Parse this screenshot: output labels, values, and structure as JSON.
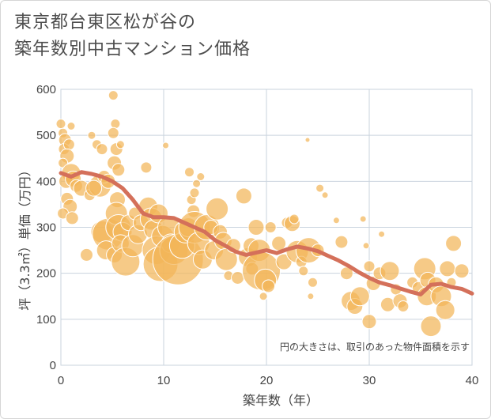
{
  "chart_data": {
    "type": "scatter",
    "title_line1": "東京都台東区松が谷の",
    "title_line2": "築年数別中古マンション価格",
    "xlabel": "築年数（年）",
    "ylabel": "坪（3.3㎡）単価（万円）",
    "note": "円の大きさは、取引のあった物件面積を示す",
    "xlim": [
      0,
      40
    ],
    "ylim": [
      0,
      600
    ],
    "xticks": [
      0,
      10,
      20,
      30,
      40
    ],
    "yticks": [
      0,
      100,
      200,
      300,
      400,
      500,
      600
    ],
    "grid": true,
    "bubble_color": "#f2b659",
    "line_color": "#d4705a",
    "points": [
      [
        0.0,
        525,
        6
      ],
      [
        0.2,
        505,
        6
      ],
      [
        0.4,
        490,
        8
      ],
      [
        0.3,
        470,
        7
      ],
      [
        0.8,
        480,
        7
      ],
      [
        0.6,
        455,
        9
      ],
      [
        1.0,
        520,
        5
      ],
      [
        0.2,
        440,
        6
      ],
      [
        1.0,
        418,
        12
      ],
      [
        0.5,
        400,
        9
      ],
      [
        1.2,
        405,
        10
      ],
      [
        1.5,
        390,
        8
      ],
      [
        2.0,
        385,
        10
      ],
      [
        0.6,
        362,
        8
      ],
      [
        0.9,
        345,
        9
      ],
      [
        0.2,
        330,
        7
      ],
      [
        1.1,
        320,
        8
      ],
      [
        2.8,
        370,
        7
      ],
      [
        3.0,
        500,
        5
      ],
      [
        3.5,
        480,
        6
      ],
      [
        4.0,
        470,
        7
      ],
      [
        3.8,
        390,
        14
      ],
      [
        4.2,
        410,
        8
      ],
      [
        4.6,
        400,
        9
      ],
      [
        3.2,
        385,
        10
      ],
      [
        2.5,
        240,
        8
      ],
      [
        4.0,
        290,
        14
      ],
      [
        4.6,
        285,
        20
      ],
      [
        4.4,
        250,
        12
      ],
      [
        5.2,
        240,
        10
      ],
      [
        5.1,
        587,
        6
      ],
      [
        5.3,
        525,
        6
      ],
      [
        5.1,
        505,
        7
      ],
      [
        5.4,
        470,
        8
      ],
      [
        5.2,
        440,
        9
      ],
      [
        5.6,
        425,
        8
      ],
      [
        5.8,
        480,
        5
      ],
      [
        5.5,
        360,
        10
      ],
      [
        5.4,
        330,
        14
      ],
      [
        5.6,
        300,
        16
      ],
      [
        6.0,
        290,
        12
      ],
      [
        5.8,
        265,
        11
      ],
      [
        6.3,
        225,
        18
      ],
      [
        6.6,
        310,
        10
      ],
      [
        7.0,
        260,
        14
      ],
      [
        7.5,
        285,
        12
      ],
      [
        7.2,
        330,
        8
      ],
      [
        7.8,
        310,
        10
      ],
      [
        8.3,
        430,
        7
      ],
      [
        8.5,
        345,
        12
      ],
      [
        8.8,
        318,
        14
      ],
      [
        9.0,
        295,
        12
      ],
      [
        9.3,
        250,
        18
      ],
      [
        9.7,
        220,
        22
      ],
      [
        9.5,
        330,
        12
      ],
      [
        9.9,
        280,
        14
      ],
      [
        10.2,
        478,
        4
      ],
      [
        10.5,
        300,
        14
      ],
      [
        10.7,
        265,
        12
      ],
      [
        11.0,
        250,
        18
      ],
      [
        11.4,
        230,
        32
      ],
      [
        11.8,
        260,
        16
      ],
      [
        12.1,
        290,
        14
      ],
      [
        12.4,
        300,
        12
      ],
      [
        12.7,
        360,
        6
      ],
      [
        12.9,
        335,
        8
      ],
      [
        12.5,
        420,
        6
      ],
      [
        13.0,
        375,
        6
      ],
      [
        13.2,
        395,
        5
      ],
      [
        13.6,
        410,
        5
      ],
      [
        13.0,
        300,
        20
      ],
      [
        13.4,
        265,
        14
      ],
      [
        13.8,
        230,
        12
      ],
      [
        14.2,
        300,
        16
      ],
      [
        14.6,
        300,
        9
      ],
      [
        14.9,
        250,
        12
      ],
      [
        15.2,
        340,
        14
      ],
      [
        15.5,
        290,
        9
      ],
      [
        15.8,
        270,
        11
      ],
      [
        16.1,
        230,
        14
      ],
      [
        16.3,
        195,
        6
      ],
      [
        16.8,
        260,
        9
      ],
      [
        17.2,
        190,
        8
      ],
      [
        17.8,
        368,
        10
      ],
      [
        18.2,
        235,
        12
      ],
      [
        18.5,
        260,
        10
      ],
      [
        18.6,
        210,
        8
      ],
      [
        19.0,
        300,
        10
      ],
      [
        19.3,
        250,
        14
      ],
      [
        19.5,
        205,
        24
      ],
      [
        19.9,
        185,
        14
      ],
      [
        20.2,
        172,
        8
      ],
      [
        19.7,
        150,
        5
      ],
      [
        20.4,
        300,
        7
      ],
      [
        21.2,
        265,
        9
      ],
      [
        21.7,
        225,
        10
      ],
      [
        22.0,
        310,
        7
      ],
      [
        22.5,
        308,
        10
      ],
      [
        22.7,
        318,
        6
      ],
      [
        23.0,
        247,
        14
      ],
      [
        23.4,
        225,
        7
      ],
      [
        23.6,
        205,
        6
      ],
      [
        24.1,
        250,
        16
      ],
      [
        24.3,
        150,
        4
      ],
      [
        24.5,
        180,
        6
      ],
      [
        25.0,
        250,
        8
      ],
      [
        24.0,
        490,
        3
      ],
      [
        25.2,
        385,
        5
      ],
      [
        25.7,
        370,
        4
      ],
      [
        26.8,
        315,
        4
      ],
      [
        27.3,
        268,
        8
      ],
      [
        27.8,
        200,
        8
      ],
      [
        28.2,
        140,
        12
      ],
      [
        28.6,
        128,
        10
      ],
      [
        29.1,
        150,
        12
      ],
      [
        29.4,
        318,
        4
      ],
      [
        29.7,
        260,
        4
      ],
      [
        30.0,
        215,
        7
      ],
      [
        30.4,
        178,
        9
      ],
      [
        30.0,
        95,
        9
      ],
      [
        31.0,
        200,
        8
      ],
      [
        31.2,
        285,
        4
      ],
      [
        31.8,
        132,
        9
      ],
      [
        32.0,
        205,
        12
      ],
      [
        32.6,
        165,
        7
      ],
      [
        33.0,
        140,
        9
      ],
      [
        33.3,
        128,
        7
      ],
      [
        34.2,
        180,
        7
      ],
      [
        34.8,
        168,
        8
      ],
      [
        35.4,
        210,
        14
      ],
      [
        35.7,
        185,
        10
      ],
      [
        35.6,
        150,
        12
      ],
      [
        36.0,
        85,
        13
      ],
      [
        36.5,
        175,
        10
      ],
      [
        37.0,
        150,
        13
      ],
      [
        37.4,
        120,
        12
      ],
      [
        37.6,
        210,
        10
      ],
      [
        38.2,
        265,
        10
      ],
      [
        38.0,
        180,
        6
      ],
      [
        39.0,
        205,
        9
      ]
    ],
    "trend": [
      [
        0,
        418
      ],
      [
        1,
        410
      ],
      [
        2,
        420
      ],
      [
        3,
        416
      ],
      [
        4,
        410
      ],
      [
        5,
        400
      ],
      [
        6,
        385
      ],
      [
        7,
        360
      ],
      [
        8,
        330
      ],
      [
        9,
        322
      ],
      [
        10,
        322
      ],
      [
        11,
        320
      ],
      [
        12,
        310
      ],
      [
        13,
        300
      ],
      [
        14,
        290
      ],
      [
        15,
        272
      ],
      [
        16,
        260
      ],
      [
        17,
        247
      ],
      [
        18,
        240
      ],
      [
        19,
        245
      ],
      [
        20,
        250
      ],
      [
        21,
        244
      ],
      [
        22,
        252
      ],
      [
        23,
        258
      ],
      [
        24,
        254
      ],
      [
        25,
        248
      ],
      [
        26,
        238
      ],
      [
        27,
        228
      ],
      [
        28,
        216
      ],
      [
        29,
        202
      ],
      [
        30,
        190
      ],
      [
        31,
        180
      ],
      [
        32,
        174
      ],
      [
        33,
        167
      ],
      [
        34,
        160
      ],
      [
        35,
        154
      ],
      [
        36,
        175
      ],
      [
        37,
        177
      ],
      [
        38,
        170
      ],
      [
        39,
        166
      ],
      [
        40,
        156
      ]
    ]
  }
}
